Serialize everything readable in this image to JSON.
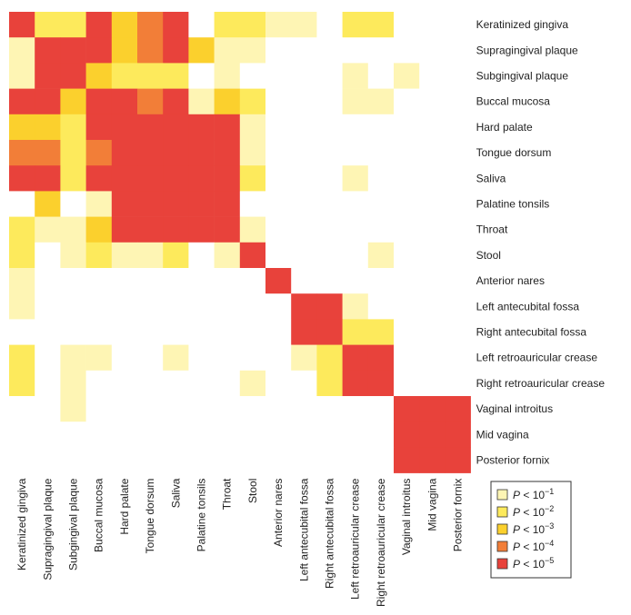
{
  "chart_data": {
    "type": "heatmap",
    "labels": [
      "Keratinized gingiva",
      "Supragingival plaque",
      "Subgingival plaque",
      "Buccal mucosa",
      "Hard palate",
      "Tongue dorsum",
      "Saliva",
      "Palatine tonsils",
      "Throat",
      "Stool",
      "Anterior nares",
      "Left antecubital fossa",
      "Right antecubital fossa",
      "Left retroauricular crease",
      "Right retroauricular crease",
      "Vaginal introitus",
      "Mid vagina",
      "Posterior fornix"
    ],
    "matrix": [
      [
        5,
        2,
        2,
        5,
        3,
        4,
        5,
        0,
        2,
        2,
        1,
        1,
        0,
        2,
        2,
        0,
        0,
        0
      ],
      [
        1,
        5,
        5,
        5,
        3,
        4,
        5,
        3,
        1,
        1,
        0,
        0,
        0,
        0,
        0,
        0,
        0,
        0
      ],
      [
        1,
        5,
        5,
        3,
        2,
        2,
        2,
        0,
        1,
        0,
        0,
        0,
        0,
        1,
        0,
        1,
        0,
        0
      ],
      [
        5,
        5,
        3,
        5,
        5,
        4,
        5,
        1,
        3,
        2,
        0,
        0,
        0,
        1,
        1,
        0,
        0,
        0
      ],
      [
        3,
        3,
        2,
        5,
        5,
        5,
        5,
        5,
        5,
        1,
        0,
        0,
        0,
        0,
        0,
        0,
        0,
        0
      ],
      [
        4,
        4,
        2,
        4,
        5,
        5,
        5,
        5,
        5,
        1,
        0,
        0,
        0,
        0,
        0,
        0,
        0,
        0
      ],
      [
        5,
        5,
        2,
        5,
        5,
        5,
        5,
        5,
        5,
        2,
        0,
        0,
        0,
        1,
        0,
        0,
        0,
        0
      ],
      [
        0,
        3,
        0,
        1,
        5,
        5,
        5,
        5,
        5,
        0,
        0,
        0,
        0,
        0,
        0,
        0,
        0,
        0
      ],
      [
        2,
        1,
        1,
        3,
        5,
        5,
        5,
        5,
        5,
        1,
        0,
        0,
        0,
        0,
        0,
        0,
        0,
        0
      ],
      [
        2,
        0,
        1,
        2,
        1,
        1,
        2,
        0,
        1,
        5,
        0,
        0,
        0,
        0,
        1,
        0,
        0,
        0
      ],
      [
        1,
        0,
        0,
        0,
        0,
        0,
        0,
        0,
        0,
        0,
        5,
        0,
        0,
        0,
        0,
        0,
        0,
        0
      ],
      [
        1,
        0,
        0,
        0,
        0,
        0,
        0,
        0,
        0,
        0,
        0,
        5,
        5,
        1,
        0,
        0,
        0,
        0
      ],
      [
        0,
        0,
        0,
        0,
        0,
        0,
        0,
        0,
        0,
        0,
        0,
        5,
        5,
        2,
        2,
        0,
        0,
        0
      ],
      [
        2,
        0,
        1,
        1,
        0,
        0,
        1,
        0,
        0,
        0,
        0,
        1,
        2,
        5,
        5,
        0,
        0,
        0
      ],
      [
        2,
        0,
        1,
        0,
        0,
        0,
        0,
        0,
        0,
        1,
        0,
        0,
        2,
        5,
        5,
        0,
        0,
        0
      ],
      [
        0,
        0,
        1,
        0,
        0,
        0,
        0,
        0,
        0,
        0,
        0,
        0,
        0,
        0,
        0,
        5,
        5,
        5
      ],
      [
        0,
        0,
        0,
        0,
        0,
        0,
        0,
        0,
        0,
        0,
        0,
        0,
        0,
        0,
        0,
        5,
        5,
        5
      ],
      [
        0,
        0,
        0,
        0,
        0,
        0,
        0,
        0,
        0,
        0,
        0,
        0,
        0,
        0,
        0,
        5,
        5,
        5
      ]
    ],
    "empty_color": "#ffffff",
    "legend": [
      {
        "symbol": "P",
        "text": " < 10",
        "exponent": "−1",
        "color": "#fef5b4"
      },
      {
        "symbol": "P",
        "text": " < 10",
        "exponent": "−2",
        "color": "#fdea5c"
      },
      {
        "symbol": "P",
        "text": " < 10",
        "exponent": "−3",
        "color": "#fbd02d"
      },
      {
        "symbol": "P",
        "text": " < 10",
        "exponent": "−4",
        "color": "#f27e38"
      },
      {
        "symbol": "P",
        "text": " < 10",
        "exponent": "−5",
        "color": "#e8423b"
      }
    ]
  }
}
